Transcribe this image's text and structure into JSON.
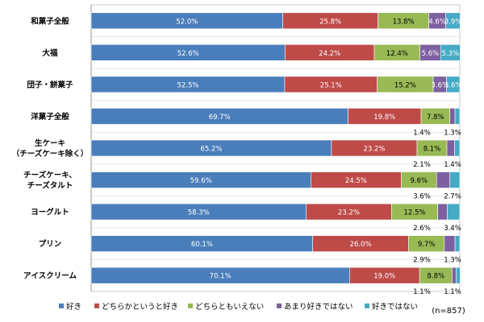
{
  "chart_data": {
    "type": "bar",
    "orientation": "horizontal",
    "stacked": true,
    "percent_stacked": true,
    "categories": [
      "和菓子全般",
      "大福",
      "団子・餅菓子",
      "洋菓子全般",
      "生ケーキ\n（チーズケーキ除く）",
      "チーズケーキ、\nチーズタルト",
      "ヨーグルト",
      "プリン",
      "アイスクリーム"
    ],
    "series": [
      {
        "name": "好き",
        "color": "#4a7ebb",
        "values": [
          52.0,
          52.6,
          52.5,
          69.7,
          65.2,
          59.6,
          58.3,
          60.1,
          70.1
        ]
      },
      {
        "name": "どちらかというと好き",
        "color": "#be4b48",
        "values": [
          25.8,
          24.2,
          25.1,
          19.8,
          23.2,
          24.5,
          23.2,
          26.0,
          19.0
        ]
      },
      {
        "name": "どちらともいえない",
        "color": "#98b954",
        "values": [
          13.8,
          12.4,
          15.2,
          7.8,
          8.1,
          9.6,
          12.5,
          9.7,
          8.8
        ]
      },
      {
        "name": "あまり好きではない",
        "color": "#7d60a0",
        "values": [
          4.6,
          5.6,
          3.6,
          1.4,
          2.1,
          3.6,
          2.6,
          2.9,
          1.1
        ]
      },
      {
        "name": "好きではない",
        "color": "#46aac5",
        "values": [
          3.9,
          5.3,
          3.6,
          1.3,
          1.4,
          2.7,
          3.4,
          1.3,
          1.1
        ]
      }
    ],
    "xlim": [
      0,
      100
    ],
    "grid": true,
    "legend_position": "bottom",
    "note": "(n=857)"
  }
}
